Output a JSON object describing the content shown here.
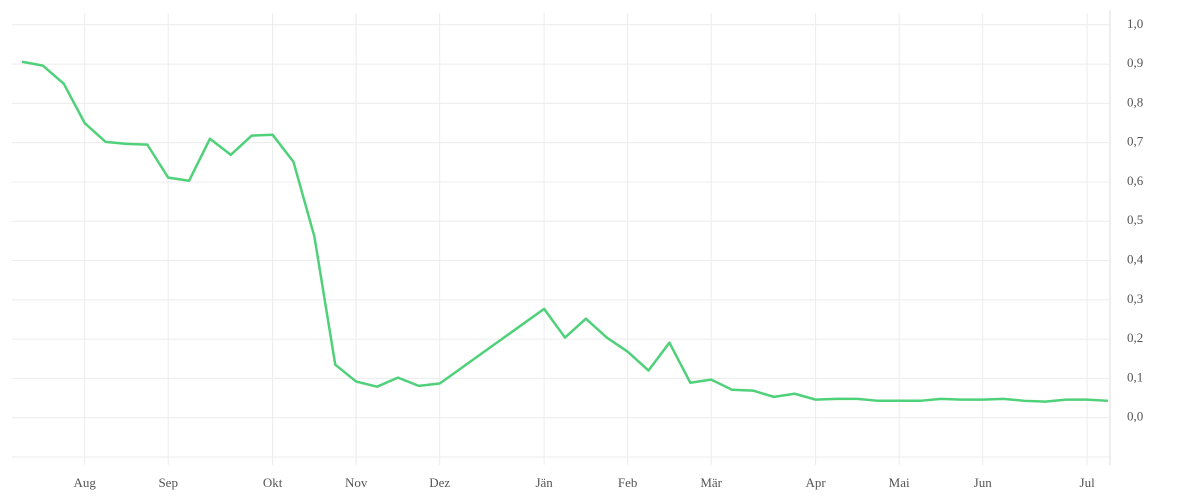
{
  "chart_data": {
    "type": "line",
    "categories": [
      null,
      null,
      null,
      "Aug",
      null,
      null,
      null,
      "Sep",
      null,
      null,
      null,
      null,
      "Okt",
      null,
      null,
      null,
      "Nov",
      null,
      null,
      null,
      "Dez",
      null,
      null,
      null,
      null,
      "Jän",
      null,
      null,
      null,
      "Feb",
      null,
      null,
      null,
      "Mär",
      null,
      null,
      null,
      null,
      "Apr",
      null,
      null,
      null,
      "Mai",
      null,
      null,
      null,
      "Jun",
      null,
      null,
      null,
      null,
      "Jul",
      null
    ],
    "series": [
      {
        "color": "#4fd17a",
        "values": [
          0.906,
          0.896,
          0.85,
          0.75,
          0.702,
          0.697,
          0.695,
          0.611,
          0.603,
          0.71,
          0.669,
          0.718,
          0.72,
          0.651,
          0.461,
          0.135,
          0.092,
          0.079,
          0.102,
          0.081,
          0.087,
          0.125,
          0.163,
          0.201,
          0.239,
          0.277,
          0.204,
          0.252,
          0.204,
          0.168,
          0.12,
          0.191,
          0.089,
          0.097,
          0.071,
          0.069,
          0.053,
          0.061,
          0.046,
          0.048,
          0.048,
          0.043,
          0.043,
          0.043,
          0.048,
          0.046,
          0.046,
          0.048,
          0.043,
          0.041,
          0.046,
          0.046,
          0.043
        ]
      }
    ],
    "ylim": [
      -0.1,
      1.03
    ],
    "yticks": [
      {
        "value": 0,
        "label": "0,0"
      },
      {
        "value": 0.1,
        "label": "0,1"
      },
      {
        "value": 0.2,
        "label": "0,2"
      },
      {
        "value": 0.3,
        "label": "0,3"
      },
      {
        "value": 0.4,
        "label": "0,4"
      },
      {
        "value": 0.5,
        "label": "0,5"
      },
      {
        "value": 0.6,
        "label": "0,6"
      },
      {
        "value": 0.7,
        "label": "0,7"
      },
      {
        "value": 0.8,
        "label": "0,8"
      },
      {
        "value": 0.9,
        "label": "0,9"
      },
      {
        "value": 1,
        "label": "1,0"
      }
    ],
    "grid": true
  }
}
